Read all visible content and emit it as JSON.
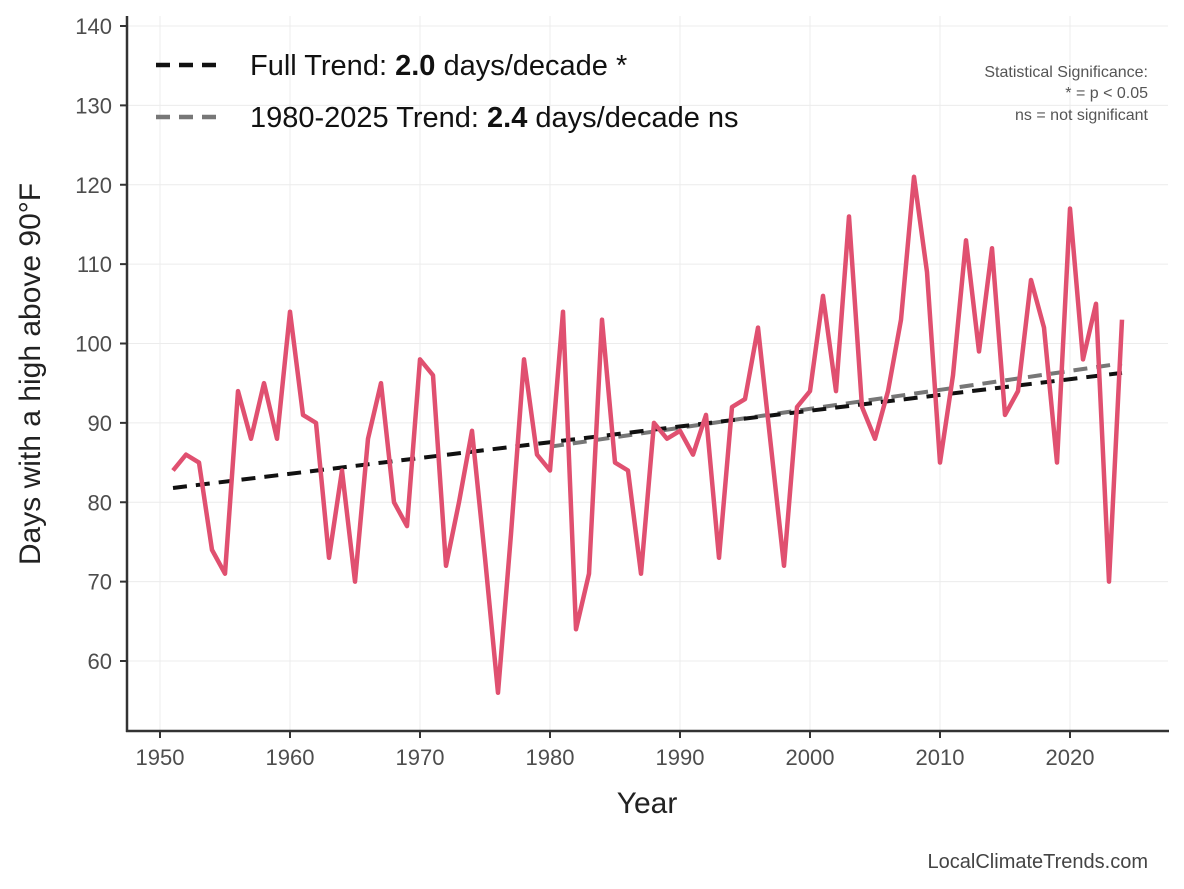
{
  "chart_data": {
    "type": "line",
    "title": "",
    "xlabel": "Year",
    "ylabel": "Days with a high above 90°F",
    "xlim": [
      1947.5,
      2028
    ],
    "ylim": [
      51,
      141
    ],
    "xticks": [
      1950,
      1960,
      1970,
      1980,
      1990,
      2000,
      2010,
      2020
    ],
    "yticks": [
      60,
      70,
      80,
      90,
      100,
      110,
      120,
      130,
      140
    ],
    "grid": true,
    "legend_position": "top-left",
    "x": [
      1951,
      1952,
      1953,
      1954,
      1955,
      1956,
      1957,
      1958,
      1959,
      1960,
      1961,
      1962,
      1963,
      1964,
      1965,
      1966,
      1967,
      1968,
      1969,
      1970,
      1971,
      1972,
      1973,
      1974,
      1975,
      1976,
      1977,
      1978,
      1979,
      1980,
      1981,
      1982,
      1983,
      1984,
      1985,
      1986,
      1987,
      1988,
      1989,
      1990,
      1991,
      1992,
      1993,
      1994,
      1995,
      1996,
      1997,
      1998,
      1999,
      2000,
      2001,
      2002,
      2003,
      2004,
      2005,
      2006,
      2007,
      2008,
      2009,
      2010,
      2011,
      2012,
      2013,
      2014,
      2015,
      2016,
      2017,
      2018,
      2019,
      2020,
      2021,
      2022,
      2023,
      2024
    ],
    "series": [
      {
        "values": [
          84,
          86,
          85,
          74,
          71,
          94,
          88,
          95,
          88,
          104,
          91,
          90,
          73,
          84,
          70,
          88,
          95,
          80,
          77,
          98,
          96,
          72,
          80,
          89,
          73,
          56,
          76,
          98,
          86,
          84,
          104,
          64,
          71,
          103,
          85,
          84,
          71,
          90,
          88,
          89,
          86,
          91,
          73,
          92,
          93,
          102,
          87,
          72,
          92,
          94,
          106,
          94,
          116,
          92,
          88,
          94,
          103,
          121,
          109,
          85,
          96,
          113,
          99,
          112,
          91,
          94,
          108,
          102,
          85,
          117,
          98,
          105,
          70,
          103
        ],
        "color": "#E05070"
      }
    ],
    "trends": [
      {
        "name": "Full Trend",
        "x": [
          1951,
          2024
        ],
        "y": [
          81.8,
          96.3
        ],
        "color": "#111111",
        "label_pre": "Full Trend: ",
        "label_value": "2.0",
        "label_post": " days/decade *"
      },
      {
        "name": "1980-2025 Trend",
        "x": [
          1980,
          2024
        ],
        "y": [
          87.0,
          97.5
        ],
        "color": "#777777",
        "label_pre": "1980-2025 Trend: ",
        "label_value": "2.4",
        "label_post": " days/decade ns"
      }
    ],
    "annotations": {
      "significance_title": "Statistical Significance:",
      "significance_star": "* = p < 0.05",
      "significance_ns": "ns = not significant"
    }
  },
  "credit": "LocalClimateTrends.com"
}
